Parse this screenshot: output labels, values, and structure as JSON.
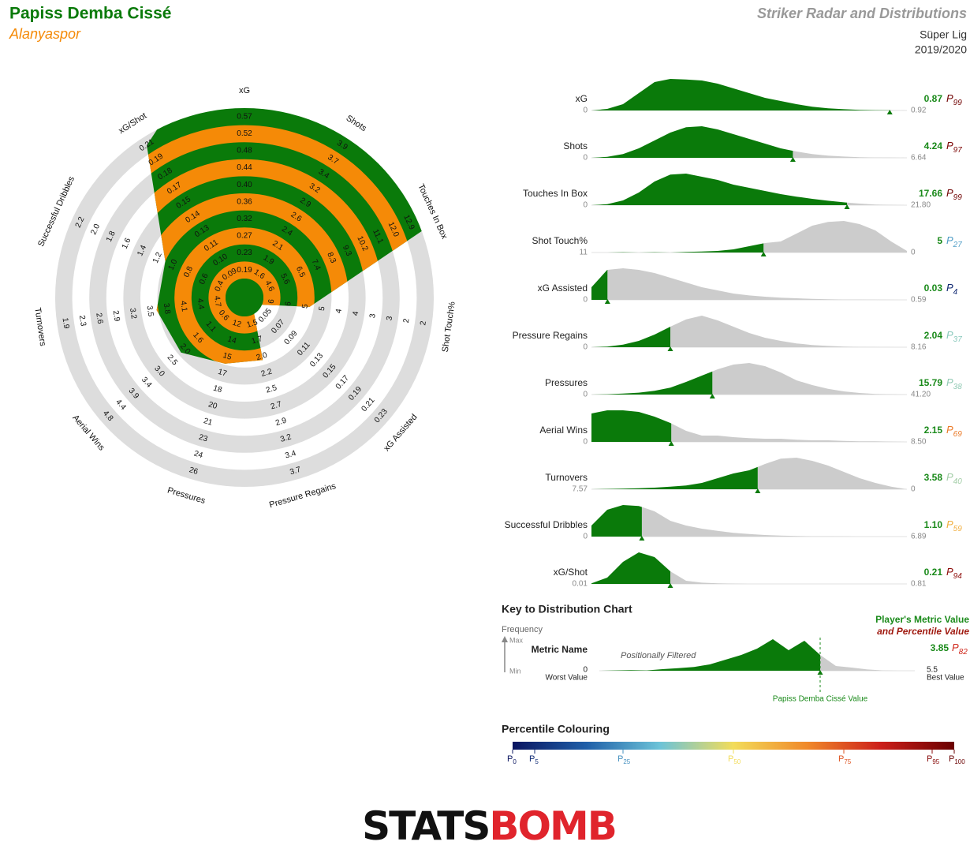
{
  "header": {
    "player": "Papiss Demba Cissé",
    "team": "Alanyaspor",
    "title": "Striker Radar and Distributions",
    "league": "Süper Lig",
    "season": "2019/2020"
  },
  "percentile_symbol": "P",
  "chart_data": [
    {
      "type": "radar",
      "categories": [
        "xG",
        "Shots",
        "Touches In Box",
        "Shot Touch%",
        "xG Assisted",
        "Pressure Regains",
        "Pressures",
        "Aerial Wins",
        "Turnovers",
        "Successful Dribbles",
        "xG/Shot"
      ],
      "values": [
        0.87,
        4.24,
        17.66,
        5,
        0.03,
        2.04,
        15.79,
        2.15,
        3.58,
        1.1,
        0.21
      ],
      "ticks": [
        [
          0.19,
          0.23,
          0.27,
          0.32,
          0.36,
          {
            "value": 0.4,
            "label": "0.40"
          },
          0.44,
          0.48,
          0.52,
          0.57
        ],
        [
          1.6,
          1.9,
          2.1,
          2.4,
          2.6,
          2.9,
          3.2,
          3.4,
          3.7,
          3.9
        ],
        [
          4.6,
          5.6,
          6.5,
          7.4,
          8.3,
          9.3,
          10.2,
          11.1,
          {
            "value": 12,
            "label": "12.0"
          },
          12.9
        ],
        [
          6,
          6,
          5,
          5,
          4,
          4,
          3,
          3,
          2,
          2
        ],
        [
          0.05,
          0.07,
          0.09,
          0.11,
          0.13,
          0.15,
          0.17,
          0.19,
          0.21,
          0.23
        ],
        [
          1.5,
          1.7,
          {
            "value": 2,
            "label": "2.0"
          },
          2.2,
          2.5,
          2.7,
          2.9,
          3.2,
          3.4,
          3.7
        ],
        [
          12,
          14,
          15,
          17,
          18,
          20,
          21,
          23,
          24,
          26
        ],
        [
          0.6,
          1.1,
          1.6,
          {
            "value": 2,
            "label": "2.0"
          },
          2.5,
          {
            "value": 3,
            "label": "3.0"
          },
          3.4,
          3.9,
          4.4,
          4.8
        ],
        [
          4.7,
          4.4,
          4.1,
          3.8,
          3.5,
          3.2,
          2.9,
          2.6,
          2.3,
          1.9
        ],
        [
          0.4,
          0.6,
          0.8,
          {
            "value": 1,
            "label": "1.0"
          },
          1.2,
          1.4,
          1.6,
          1.8,
          {
            "value": 2,
            "label": "2.0"
          },
          2.2
        ],
        [
          0.09,
          {
            "value": 0.1,
            "label": "0.10"
          },
          0.11,
          0.13,
          0.14,
          0.15,
          0.17,
          0.18,
          0.19,
          0.21
        ]
      ],
      "colors": {
        "fill": "#0a7a0a",
        "band": "#f58a07",
        "ring": "#dddddd"
      }
    },
    {
      "type": "distribution",
      "categories": [
        "xG",
        "Shots",
        "Touches In Box",
        "Shot Touch%",
        "xG Assisted",
        "Pressure Regains",
        "Pressures",
        "Aerial Wins",
        "Turnovers",
        "Successful Dribbles",
        "xG/Shot"
      ],
      "values": [
        0.87,
        4.24,
        17.66,
        5,
        0.03,
        2.04,
        15.79,
        2.15,
        3.58,
        1.1,
        0.21
      ],
      "value_labels": [
        "0.87",
        "4.24",
        "17.66",
        "5",
        "0.03",
        "2.04",
        "15.79",
        "2.15",
        "3.58",
        "1.10",
        "0.21"
      ],
      "percentiles": [
        99,
        97,
        99,
        27,
        4,
        37,
        38,
        69,
        40,
        59,
        94
      ],
      "min": [
        0,
        0,
        0,
        11,
        0,
        0,
        0,
        0,
        7.57,
        0,
        0.01
      ],
      "max": [
        0.92,
        6.64,
        {
          "value": 21.8,
          "label": "21.80"
        },
        0,
        0.59,
        8.16,
        {
          "value": 41.2,
          "label": "41.20"
        },
        {
          "value": 8.5,
          "label": "8.50"
        },
        0,
        6.89,
        0.81
      ],
      "density": [
        [
          0,
          0.05,
          0.2,
          0.55,
          0.9,
          1,
          0.98,
          0.95,
          0.85,
          0.7,
          0.55,
          0.4,
          0.3,
          0.2,
          0.12,
          0.07,
          0.04,
          0.02,
          0.01,
          0.005,
          0
        ],
        [
          0,
          0.03,
          0.12,
          0.3,
          0.55,
          0.8,
          0.97,
          1,
          0.9,
          0.75,
          0.6,
          0.45,
          0.3,
          0.2,
          0.12,
          0.07,
          0.04,
          0.02,
          0.01,
          0.005,
          0
        ],
        [
          0,
          0.03,
          0.15,
          0.4,
          0.75,
          0.97,
          1,
          0.9,
          0.8,
          0.65,
          0.55,
          0.45,
          0.35,
          0.27,
          0.2,
          0.14,
          0.09,
          0.05,
          0.02,
          0.01,
          0
        ],
        [
          0,
          0,
          0.01,
          0,
          0.01,
          0,
          0.02,
          0.03,
          0.05,
          0.1,
          0.2,
          0.3,
          0.35,
          0.6,
          0.85,
          0.97,
          1,
          0.9,
          0.7,
          0.35,
          0.05
        ],
        [
          0.4,
          0.95,
          1,
          0.95,
          0.85,
          0.7,
          0.55,
          0.4,
          0.3,
          0.2,
          0.14,
          0.1,
          0.07,
          0.05,
          0.03,
          0.02,
          0.01,
          0.01,
          0.005,
          0.002,
          0
        ],
        [
          0,
          0.02,
          0.08,
          0.2,
          0.4,
          0.65,
          0.88,
          1,
          0.85,
          0.65,
          0.45,
          0.3,
          0.2,
          0.12,
          0.07,
          0.04,
          0.02,
          0.01,
          0.005,
          0.002,
          0
        ],
        [
          0,
          0.01,
          0.03,
          0.06,
          0.12,
          0.22,
          0.4,
          0.6,
          0.8,
          0.95,
          1,
          0.9,
          0.7,
          0.45,
          0.3,
          0.18,
          0.1,
          0.05,
          0.02,
          0.01,
          0
        ],
        [
          0.9,
          1,
          1,
          0.95,
          0.8,
          0.6,
          0.35,
          0.2,
          0.2,
          0.15,
          0.12,
          0.1,
          0.1,
          0.07,
          0.05,
          0.05,
          0.03,
          0.02,
          0.02,
          0.01,
          0
        ],
        [
          0,
          0.01,
          0.02,
          0.03,
          0.05,
          0.08,
          0.12,
          0.2,
          0.35,
          0.5,
          0.6,
          0.8,
          0.97,
          1,
          0.9,
          0.75,
          0.55,
          0.35,
          0.2,
          0.08,
          0
        ],
        [
          0.35,
          0.85,
          1,
          0.97,
          0.8,
          0.5,
          0.35,
          0.25,
          0.18,
          0.12,
          0.08,
          0.05,
          0.03,
          0.02,
          0.01,
          0.01,
          0.005,
          0,
          0,
          0,
          0
        ],
        [
          0.02,
          0.2,
          0.7,
          1,
          0.85,
          0.4,
          0.1,
          0.04,
          0.02,
          0.01,
          0,
          0,
          0,
          0,
          0,
          0,
          0,
          0,
          0,
          0,
          0
        ]
      ],
      "colors": {
        "below": "#0a7a0a",
        "above": "#cccccc",
        "value": "#1a8a1a"
      }
    }
  ],
  "key": {
    "title": "Key to Distribution Chart",
    "frequency": "Frequency",
    "max_label": "Max",
    "min_label": "Min",
    "metric_name": "Metric Name",
    "min": 0,
    "worst": "Worst Value",
    "note": "Positionally Filtered",
    "legend_value": "Player's Metric Value",
    "legend_percentile": "and Percentile Value",
    "value": 3.85,
    "percentile": 82,
    "max": 5.5,
    "best": "Best Value",
    "marker_label": "Papiss Demba Cissé Value",
    "density": [
      0,
      0.01,
      0.02,
      0.01,
      0.05,
      0.08,
      0.12,
      0.2,
      0.35,
      0.5,
      0.7,
      1,
      0.65,
      0.95,
      0.5,
      0.15,
      0.1,
      0.04,
      0.01,
      0,
      0
    ]
  },
  "percentile_colouring": {
    "title": "Percentile Colouring",
    "ticks": [
      0,
      5,
      25,
      50,
      75,
      95,
      100
    ],
    "colours": [
      "#0a1560",
      "#1f5fa8",
      "#6cc3d8",
      "#f2dc5a",
      "#f0892a",
      "#cc1f1a",
      "#6a0000"
    ]
  },
  "logo": [
    "STATS",
    "BOMB"
  ]
}
